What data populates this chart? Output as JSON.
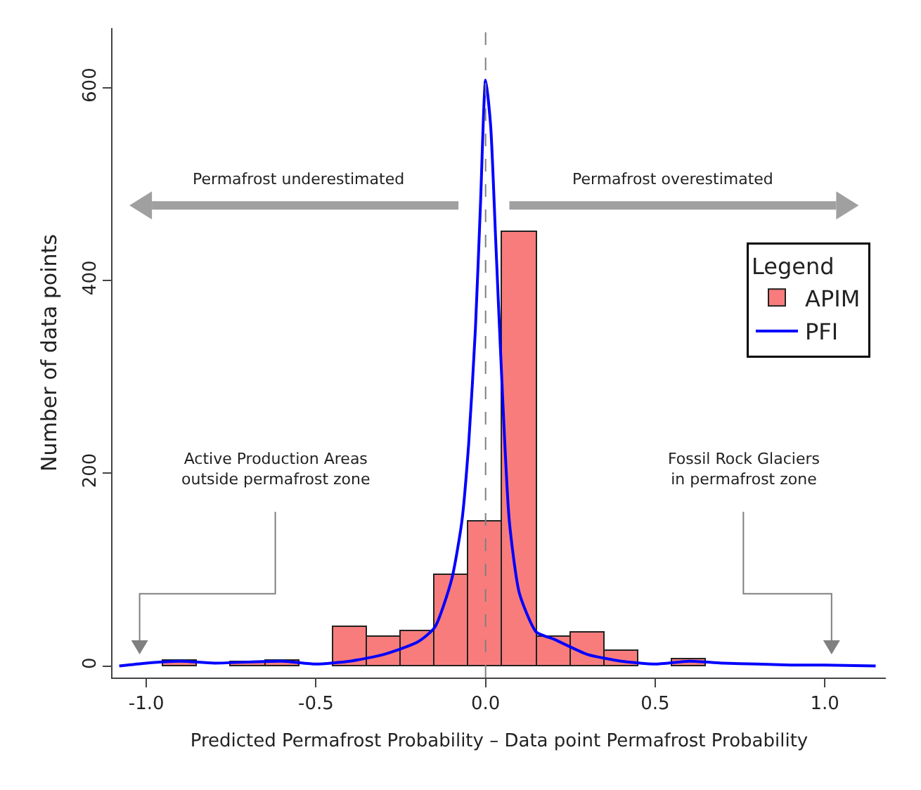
{
  "chart_data": {
    "type": "histogram",
    "xlabel": "Predicted Permafrost Probability – Data point Permafrost Probability",
    "ylabel": "Number of data points",
    "legend_title": "Legend",
    "legend": "top right",
    "grid": false,
    "marker": "none",
    "bins": [
      -0.95,
      -0.85,
      -0.75,
      -0.65,
      -0.55,
      -0.45,
      -0.35,
      -0.25,
      -0.15,
      -0.05,
      0.05,
      0.15,
      0.25,
      0.35,
      0.45,
      0.55,
      0.65,
      0.75
    ],
    "series": [
      {
        "name": "APIM",
        "color": "#f87c7c",
        "values": [
          5,
          0,
          4,
          6,
          null,
          41,
          30,
          36,
          95,
          150,
          450,
          30,
          35,
          15,
          null,
          7,
          null
        ]
      },
      {
        "name": "PFI",
        "type": "line",
        "color": "#0000ff",
        "line_style": "solid",
        "x": [
          -1.08,
          -1.0,
          -0.9,
          -0.8,
          -0.6,
          -0.5,
          -0.4,
          -0.3,
          -0.2,
          -0.15,
          -0.1,
          -0.07,
          -0.05,
          -0.03,
          -0.015,
          0,
          0.015,
          0.03,
          0.05,
          0.07,
          0.1,
          0.15,
          0.2,
          0.3,
          0.4,
          0.5,
          0.6,
          0.7,
          0.8,
          0.9,
          1.0,
          1.15
        ],
        "values": [
          0,
          3,
          5,
          3,
          5,
          2,
          5,
          12,
          25,
          40,
          90,
          150,
          230,
          350,
          480,
          608,
          560,
          440,
          280,
          150,
          75,
          35,
          28,
          12,
          5,
          2,
          5,
          3,
          2,
          1,
          1,
          0
        ]
      }
    ],
    "xlim": [
      -1.1,
      1.18
    ],
    "xticks": [
      {
        "value": -1,
        "label": "-1.0"
      },
      {
        "value": -0.5,
        "label": "-0.5"
      },
      {
        "value": 0,
        "label": "0.0"
      },
      {
        "value": 0.5,
        "label": "0.5"
      },
      {
        "value": 1,
        "label": "1.0"
      }
    ],
    "ylim": [
      -12,
      662
    ],
    "yticks": [
      0,
      200,
      400,
      600
    ],
    "ref_lines": [
      {
        "axis": "x",
        "value": 0,
        "color": "#808080",
        "line_style": "dashed"
      }
    ],
    "annotations": [
      "Permafrost underestimated",
      "Permafrost overestimated",
      "Active Production Areas\noutside permafrost zone",
      "Fossil Rock Glaciers\nin permafrost zone"
    ]
  }
}
